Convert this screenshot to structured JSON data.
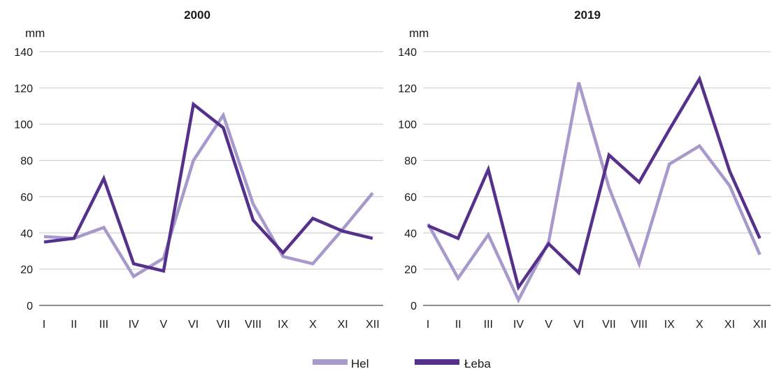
{
  "colors": {
    "hel": "#a899cc",
    "leba": "#55318c"
  },
  "legend": [
    {
      "key": "hel",
      "label": "Hel"
    },
    {
      "key": "leba",
      "label": "Łeba"
    }
  ],
  "chart_data": [
    {
      "type": "line",
      "title": "2000",
      "ylabel": "mm",
      "ylim": [
        0,
        140
      ],
      "yticks": [
        0,
        20,
        40,
        60,
        80,
        100,
        120,
        140
      ],
      "categories": [
        "I",
        "II",
        "III",
        "IV",
        "V",
        "VI",
        "VII",
        "VIII",
        "IX",
        "X",
        "XI",
        "XII"
      ],
      "grid": true,
      "series": [
        {
          "name": "Hel",
          "key": "hel",
          "values": [
            38,
            37,
            43,
            16,
            26,
            80,
            105,
            56,
            27,
            23,
            42,
            62
          ]
        },
        {
          "name": "Łeba",
          "key": "leba",
          "values": [
            35,
            37,
            70,
            23,
            19,
            111,
            98,
            47,
            29,
            48,
            41,
            37
          ]
        }
      ]
    },
    {
      "type": "line",
      "title": "2019",
      "ylabel": "mm",
      "ylim": [
        0,
        140
      ],
      "yticks": [
        0,
        20,
        40,
        60,
        80,
        100,
        120,
        140
      ],
      "categories": [
        "I",
        "II",
        "III",
        "IV",
        "V",
        "VI",
        "VII",
        "VIII",
        "IX",
        "X",
        "XI",
        "XII"
      ],
      "grid": true,
      "series": [
        {
          "name": "Hel",
          "key": "hel",
          "values": [
            45,
            15,
            39,
            3,
            35,
            123,
            65,
            23,
            78,
            88,
            66,
            28
          ]
        },
        {
          "name": "Łeba",
          "key": "leba",
          "values": [
            44,
            37,
            75,
            10,
            34,
            18,
            83,
            68,
            97,
            125,
            74,
            37
          ]
        }
      ]
    }
  ]
}
